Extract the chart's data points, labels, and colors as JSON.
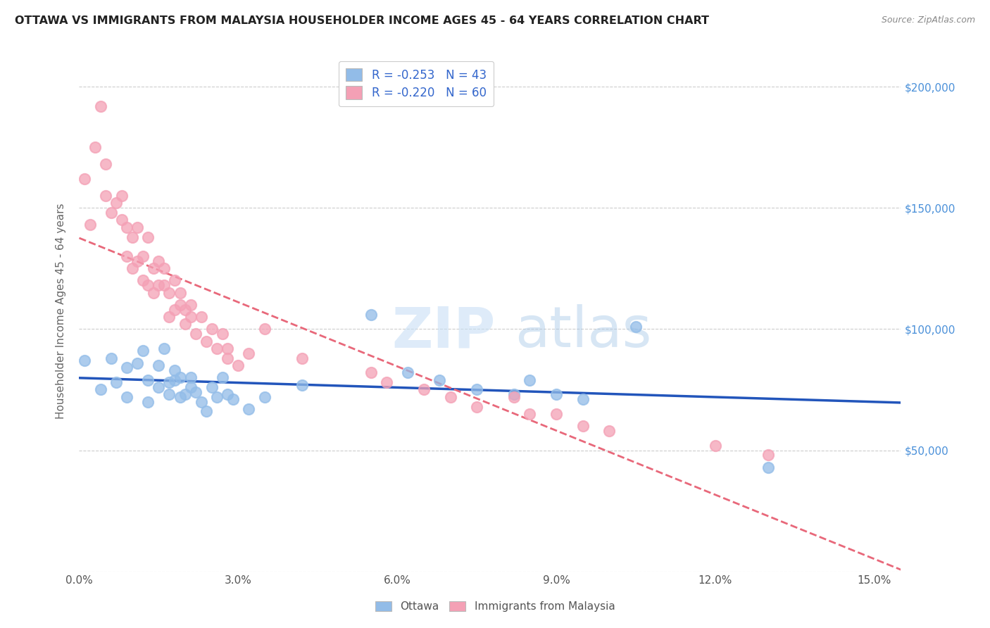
{
  "title": "OTTAWA VS IMMIGRANTS FROM MALAYSIA HOUSEHOLDER INCOME AGES 45 - 64 YEARS CORRELATION CHART",
  "source": "Source: ZipAtlas.com",
  "xlabel_ticks": [
    "0.0%",
    "3.0%",
    "6.0%",
    "9.0%",
    "12.0%",
    "15.0%"
  ],
  "xlabel_vals": [
    0.0,
    0.03,
    0.06,
    0.09,
    0.12,
    0.15
  ],
  "ylabel_label": "Householder Income Ages 45 - 64 years",
  "ylabel_right_ticks": [
    "$50,000",
    "$100,000",
    "$150,000",
    "$200,000"
  ],
  "ylabel_right_vals": [
    50000,
    100000,
    150000,
    200000
  ],
  "xlim": [
    0.0,
    0.155
  ],
  "ylim": [
    0,
    215000
  ],
  "legend_r_ottawa": "-0.253",
  "legend_n_ottawa": "43",
  "legend_r_malaysia": "-0.220",
  "legend_n_malaysia": "60",
  "ottawa_color": "#92bce8",
  "malaysia_color": "#f4a0b5",
  "ottawa_line_color": "#2255bb",
  "malaysia_line_color": "#e8687a",
  "ottawa_x": [
    0.001,
    0.004,
    0.006,
    0.007,
    0.009,
    0.009,
    0.011,
    0.012,
    0.013,
    0.013,
    0.015,
    0.015,
    0.016,
    0.017,
    0.017,
    0.018,
    0.018,
    0.019,
    0.019,
    0.02,
    0.021,
    0.021,
    0.022,
    0.023,
    0.024,
    0.025,
    0.026,
    0.027,
    0.028,
    0.029,
    0.032,
    0.035,
    0.042,
    0.055,
    0.062,
    0.068,
    0.075,
    0.082,
    0.085,
    0.09,
    0.095,
    0.105,
    0.13
  ],
  "ottawa_y": [
    87000,
    75000,
    88000,
    78000,
    72000,
    84000,
    86000,
    91000,
    70000,
    79000,
    85000,
    76000,
    92000,
    73000,
    78000,
    79000,
    83000,
    72000,
    80000,
    73000,
    76000,
    80000,
    74000,
    70000,
    66000,
    76000,
    72000,
    80000,
    73000,
    71000,
    67000,
    72000,
    77000,
    106000,
    82000,
    79000,
    75000,
    73000,
    79000,
    73000,
    71000,
    101000,
    43000
  ],
  "malaysia_x": [
    0.001,
    0.002,
    0.003,
    0.004,
    0.005,
    0.005,
    0.006,
    0.007,
    0.008,
    0.008,
    0.009,
    0.009,
    0.01,
    0.01,
    0.011,
    0.011,
    0.012,
    0.012,
    0.013,
    0.013,
    0.014,
    0.014,
    0.015,
    0.015,
    0.016,
    0.016,
    0.017,
    0.017,
    0.018,
    0.018,
    0.019,
    0.019,
    0.02,
    0.02,
    0.021,
    0.021,
    0.022,
    0.023,
    0.024,
    0.025,
    0.026,
    0.027,
    0.028,
    0.028,
    0.03,
    0.032,
    0.035,
    0.042,
    0.055,
    0.058,
    0.065,
    0.07,
    0.075,
    0.082,
    0.085,
    0.09,
    0.095,
    0.1,
    0.12,
    0.13
  ],
  "malaysia_y": [
    162000,
    143000,
    175000,
    192000,
    155000,
    168000,
    148000,
    152000,
    155000,
    145000,
    130000,
    142000,
    125000,
    138000,
    128000,
    142000,
    120000,
    130000,
    138000,
    118000,
    125000,
    115000,
    128000,
    118000,
    118000,
    125000,
    105000,
    115000,
    108000,
    120000,
    110000,
    115000,
    102000,
    108000,
    105000,
    110000,
    98000,
    105000,
    95000,
    100000,
    92000,
    98000,
    88000,
    92000,
    85000,
    90000,
    100000,
    88000,
    82000,
    78000,
    75000,
    72000,
    68000,
    72000,
    65000,
    65000,
    60000,
    58000,
    52000,
    48000
  ]
}
